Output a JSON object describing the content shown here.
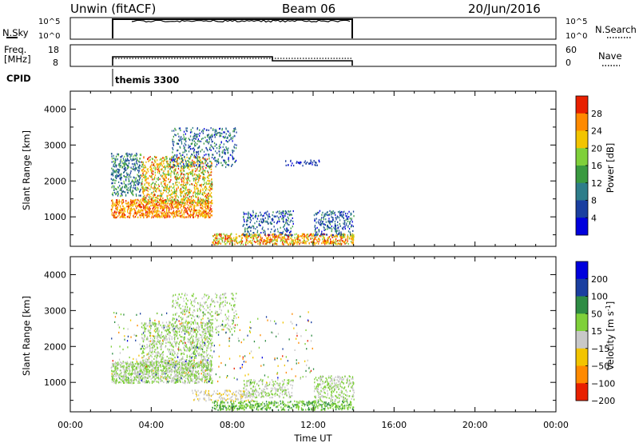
{
  "header": {
    "station": "Unwin (fitACF)",
    "beam": "Beam 06",
    "date": "20/Jun/2016"
  },
  "top_panels": {
    "nsky_label": "N.Sky",
    "nsky_ticks": [
      "10^5",
      "10^0"
    ],
    "nsearch_label": "N.Search",
    "nsearch_ticks": [
      "10^5",
      "10^0"
    ],
    "freq_label": "Freq.",
    "freq_unit": "[MHz]",
    "freq_ticks": [
      "18",
      "8"
    ],
    "nave_label": "Nave",
    "nave_ticks": [
      "60",
      "0"
    ],
    "cpid_label": "CPID",
    "cpid_value": "themis 3300"
  },
  "chart_data": [
    {
      "type": "heatmap",
      "title": "",
      "xlabel": "",
      "ylabel": "Slant Range [km]",
      "colorbar_label": "Power [dB]",
      "x_ticks": [
        "00:00",
        "04:00",
        "08:00",
        "12:00",
        "16:00",
        "20:00",
        "00:00"
      ],
      "y_ticks": [
        "1000",
        "2000",
        "3000",
        "4000"
      ],
      "ylim": [
        180,
        4500
      ],
      "xlim_hours": [
        0,
        24
      ],
      "colorbar_ticks": [
        "4",
        "8",
        "12",
        "16",
        "20",
        "24",
        "28"
      ],
      "colorbar_range": [
        0,
        32
      ],
      "colormap": [
        "#0000dd",
        "#1a3fa0",
        "#2e7d8a",
        "#3a9a40",
        "#7fd03a",
        "#f2c400",
        "#ff8a00",
        "#e82000"
      ],
      "scatter_regions": [
        {
          "t0": 2.0,
          "t1": 7.0,
          "r0": 1000,
          "r1": 1500,
          "v0": 20,
          "v1": 31,
          "density": 0.9
        },
        {
          "t0": 2.0,
          "t1": 3.5,
          "r0": 1600,
          "r1": 2800,
          "v0": 4,
          "v1": 18,
          "density": 0.5
        },
        {
          "t0": 3.5,
          "t1": 7.0,
          "r0": 1400,
          "r1": 2700,
          "v0": 14,
          "v1": 30,
          "density": 0.55
        },
        {
          "t0": 5.0,
          "t1": 8.2,
          "r0": 2400,
          "r1": 3500,
          "v0": 2,
          "v1": 16,
          "density": 0.3
        },
        {
          "t0": 7.0,
          "t1": 14.0,
          "r0": 250,
          "r1": 550,
          "v0": 16,
          "v1": 31,
          "density": 0.8
        },
        {
          "t0": 8.5,
          "t1": 11.0,
          "r0": 500,
          "r1": 1200,
          "v0": 2,
          "v1": 14,
          "density": 0.35
        },
        {
          "t0": 12.0,
          "t1": 14.0,
          "r0": 500,
          "r1": 1200,
          "v0": 2,
          "v1": 14,
          "density": 0.4
        },
        {
          "t0": 10.5,
          "t1": 12.5,
          "r0": 2450,
          "r1": 2600,
          "v0": 2,
          "v1": 8,
          "density": 0.35
        }
      ]
    },
    {
      "type": "heatmap",
      "title": "",
      "xlabel": "Time UT",
      "ylabel": "Slant Range [km]",
      "colorbar_label": "Velocity [m s^-1]",
      "x_ticks": [
        "00:00",
        "04:00",
        "08:00",
        "12:00",
        "16:00",
        "20:00",
        "00:00"
      ],
      "y_ticks": [
        "1000",
        "2000",
        "3000",
        "4000"
      ],
      "ylim": [
        180,
        4500
      ],
      "xlim_hours": [
        0,
        24
      ],
      "colorbar_ticks": [
        "200",
        "100",
        "50",
        "15",
        "−15",
        "−50",
        "−100",
        "−200"
      ],
      "colorbar_range": [
        -300,
        300
      ],
      "colormap": [
        "#0000dd",
        "#1a3fa0",
        "#2e8c44",
        "#7fd03a",
        "#c8c8c8",
        "#f2c400",
        "#ff8a00",
        "#e82000"
      ],
      "scatter_regions": [
        {
          "t0": 2.0,
          "t1": 7.0,
          "r0": 1000,
          "r1": 1600,
          "v0": -15,
          "v1": 15,
          "density": 0.9
        },
        {
          "t0": 3.5,
          "t1": 7.0,
          "r0": 1500,
          "r1": 2700,
          "v0": -15,
          "v1": 15,
          "density": 0.5
        },
        {
          "t0": 5.0,
          "t1": 8.2,
          "r0": 2400,
          "r1": 3500,
          "v0": -15,
          "v1": 15,
          "density": 0.25
        },
        {
          "t0": 7.0,
          "t1": 14.0,
          "r0": 250,
          "r1": 500,
          "v0": 20,
          "v1": 100,
          "density": 0.7
        },
        {
          "t0": 6.0,
          "t1": 9.0,
          "r0": 500,
          "r1": 800,
          "v0": -100,
          "v1": -20,
          "density": 0.4
        },
        {
          "t0": 8.5,
          "t1": 11.0,
          "r0": 600,
          "r1": 1100,
          "v0": -15,
          "v1": 15,
          "density": 0.45
        },
        {
          "t0": 12.0,
          "t1": 14.0,
          "r0": 500,
          "r1": 1200,
          "v0": -15,
          "v1": 15,
          "density": 0.5
        },
        {
          "t0": 2.0,
          "t1": 12.0,
          "r0": 1000,
          "r1": 3000,
          "v0": -250,
          "v1": 250,
          "density": 0.04
        }
      ]
    }
  ]
}
